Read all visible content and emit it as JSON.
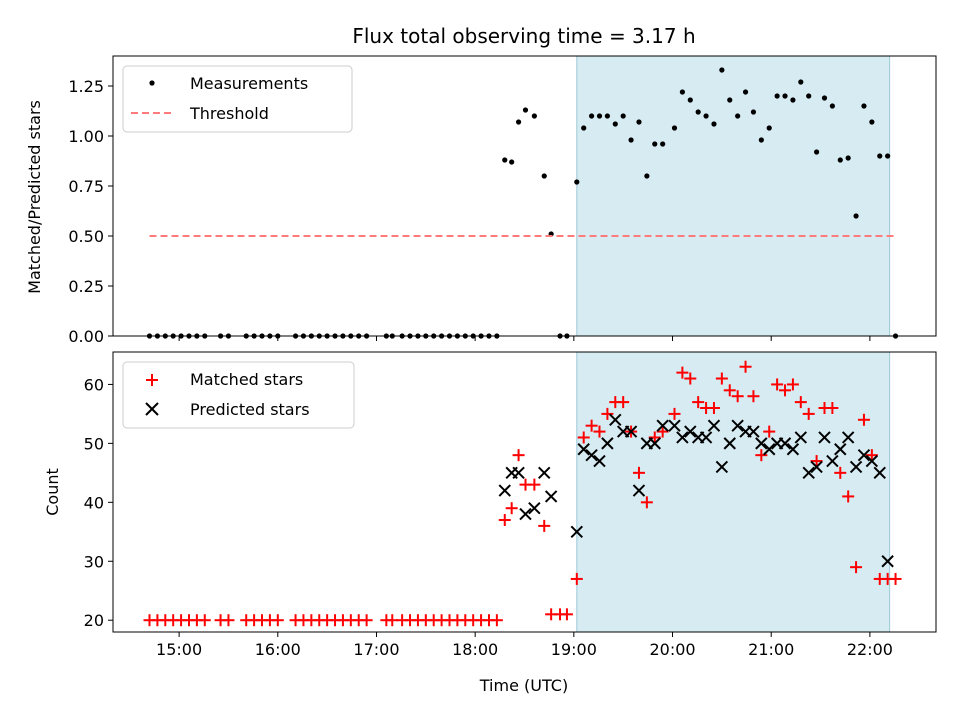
{
  "chart_data": [
    {
      "type": "scatter",
      "title": "Flux total observing time = 3.17 h",
      "xlabel": "",
      "ylabel": "Matched/Predicted stars",
      "xlim_hours": [
        14.33,
        22.67
      ],
      "ylim": [
        0,
        1.4
      ],
      "yticks": [
        0.0,
        0.25,
        0.5,
        0.75,
        1.0,
        1.25
      ],
      "ytick_labels": [
        "0.00",
        "0.25",
        "0.50",
        "0.75",
        "1.00",
        "1.25"
      ],
      "shaded_region_hours": [
        19.03,
        22.2
      ],
      "grid": false,
      "legend_position": "upper-left",
      "series": [
        {
          "name": "Measurements",
          "marker": "dot",
          "color": "#000000",
          "x_hours": [
            14.7,
            14.78,
            14.86,
            14.94,
            15.02,
            15.1,
            15.18,
            15.26,
            15.42,
            15.5,
            15.68,
            15.76,
            15.84,
            15.92,
            16.0,
            16.18,
            16.26,
            16.34,
            16.42,
            16.5,
            16.58,
            16.66,
            16.74,
            16.82,
            16.9,
            17.1,
            17.16,
            17.26,
            17.34,
            17.42,
            17.5,
            17.58,
            17.66,
            17.74,
            17.82,
            17.9,
            17.98,
            18.06,
            18.14,
            18.22,
            18.3,
            18.37,
            18.44,
            18.51,
            18.6,
            18.7,
            18.77,
            18.86,
            18.93,
            19.03,
            19.1,
            19.18,
            19.26,
            19.34,
            19.42,
            19.5,
            19.58,
            19.66,
            19.74,
            19.82,
            19.9,
            20.02,
            20.1,
            20.18,
            20.26,
            20.34,
            20.42,
            20.5,
            20.58,
            20.66,
            20.74,
            20.82,
            20.9,
            20.98,
            21.06,
            21.14,
            21.22,
            21.3,
            21.38,
            21.46,
            21.54,
            21.62,
            21.7,
            21.78,
            21.86,
            21.94,
            22.02,
            22.1,
            22.18,
            22.26
          ],
          "y": [
            0,
            0,
            0,
            0,
            0,
            0,
            0,
            0,
            0,
            0,
            0,
            0,
            0,
            0,
            0,
            0,
            0,
            0,
            0,
            0,
            0,
            0,
            0,
            0,
            0,
            0,
            0,
            0,
            0,
            0,
            0,
            0,
            0,
            0,
            0,
            0,
            0,
            0,
            0,
            0,
            0.88,
            0.87,
            1.07,
            1.13,
            1.1,
            0.8,
            0.51,
            0,
            0,
            0.77,
            1.04,
            1.1,
            1.1,
            1.1,
            1.06,
            1.1,
            0.98,
            1.07,
            0.8,
            0.96,
            0.96,
            1.04,
            1.22,
            1.18,
            1.12,
            1.1,
            1.06,
            1.33,
            1.18,
            1.1,
            1.22,
            1.12,
            0.98,
            1.04,
            1.2,
            1.2,
            1.18,
            1.27,
            1.2,
            0.92,
            1.19,
            1.15,
            0.88,
            0.89,
            0.6,
            1.15,
            1.07,
            0.9,
            0.9,
            0
          ]
        },
        {
          "name": "Threshold",
          "marker": "dashed-line",
          "color": "#ff7b7b",
          "x_hours": [
            14.7,
            22.26
          ],
          "y": [
            0.5,
            0.5
          ]
        }
      ]
    },
    {
      "type": "scatter",
      "title": "",
      "xlabel": "Time (UTC)",
      "ylabel": "Count",
      "xlim_hours": [
        14.33,
        22.67
      ],
      "ylim": [
        18,
        65.5
      ],
      "yticks": [
        20,
        30,
        40,
        50,
        60
      ],
      "ytick_labels": [
        "20",
        "30",
        "40",
        "50",
        "60"
      ],
      "xticks_hours": [
        15,
        16,
        17,
        18,
        19,
        20,
        21,
        22
      ],
      "xtick_labels": [
        "15:00",
        "16:00",
        "17:00",
        "18:00",
        "19:00",
        "20:00",
        "21:00",
        "22:00"
      ],
      "shaded_region_hours": [
        19.03,
        22.2
      ],
      "grid": false,
      "legend_position": "upper-left",
      "series": [
        {
          "name": "Matched stars",
          "marker": "plus",
          "color": "#ff0000",
          "x_hours": [
            14.7,
            14.78,
            14.86,
            14.94,
            15.02,
            15.1,
            15.18,
            15.26,
            15.42,
            15.5,
            15.68,
            15.76,
            15.84,
            15.92,
            16.0,
            16.18,
            16.26,
            16.34,
            16.42,
            16.5,
            16.58,
            16.66,
            16.74,
            16.82,
            16.9,
            17.1,
            17.16,
            17.26,
            17.34,
            17.42,
            17.5,
            17.58,
            17.66,
            17.74,
            17.82,
            17.9,
            17.98,
            18.06,
            18.14,
            18.22,
            18.3,
            18.37,
            18.44,
            18.51,
            18.6,
            18.7,
            18.77,
            18.86,
            18.93,
            19.03,
            19.1,
            19.18,
            19.26,
            19.34,
            19.42,
            19.5,
            19.58,
            19.66,
            19.74,
            19.82,
            19.9,
            20.02,
            20.1,
            20.18,
            20.26,
            20.34,
            20.42,
            20.5,
            20.58,
            20.66,
            20.74,
            20.82,
            20.9,
            20.98,
            21.06,
            21.14,
            21.22,
            21.3,
            21.38,
            21.46,
            21.54,
            21.62,
            21.7,
            21.78,
            21.86,
            21.94,
            22.02,
            22.1,
            22.18,
            22.26
          ],
          "y": [
            20,
            20,
            20,
            20,
            20,
            20,
            20,
            20,
            20,
            20,
            20,
            20,
            20,
            20,
            20,
            20,
            20,
            20,
            20,
            20,
            20,
            20,
            20,
            20,
            20,
            20,
            20,
            20,
            20,
            20,
            20,
            20,
            20,
            20,
            20,
            20,
            20,
            20,
            20,
            20,
            37,
            39,
            48,
            43,
            43,
            36,
            21,
            21,
            21,
            27,
            51,
            53,
            52,
            55,
            57,
            57,
            52,
            45,
            40,
            51,
            52,
            55,
            62,
            61,
            57,
            56,
            56,
            61,
            59,
            58,
            63,
            58,
            48,
            52,
            60,
            59,
            60,
            57,
            55,
            47,
            56,
            56,
            45,
            41,
            29,
            54,
            48,
            27,
            27,
            27
          ]
        },
        {
          "name": "Predicted stars",
          "marker": "x",
          "color": "#000000",
          "x_hours": [
            18.3,
            18.37,
            18.44,
            18.51,
            18.6,
            18.7,
            18.77,
            19.03,
            19.1,
            19.18,
            19.26,
            19.34,
            19.42,
            19.5,
            19.58,
            19.66,
            19.74,
            19.82,
            19.9,
            20.02,
            20.1,
            20.18,
            20.26,
            20.34,
            20.42,
            20.5,
            20.58,
            20.66,
            20.74,
            20.82,
            20.9,
            20.98,
            21.06,
            21.14,
            21.22,
            21.3,
            21.38,
            21.46,
            21.54,
            21.62,
            21.7,
            21.78,
            21.86,
            21.94,
            22.02,
            22.1,
            22.18
          ],
          "y": [
            42,
            45,
            45,
            38,
            39,
            45,
            41,
            35,
            49,
            48,
            47,
            50,
            54,
            52,
            52,
            42,
            50,
            50,
            53,
            53,
            51,
            52,
            51,
            51,
            53,
            46,
            50,
            53,
            52,
            52,
            50,
            49,
            50,
            50,
            49,
            51,
            45,
            46,
            51,
            47,
            49,
            51,
            46,
            48,
            47,
            45,
            30
          ]
        }
      ]
    }
  ]
}
